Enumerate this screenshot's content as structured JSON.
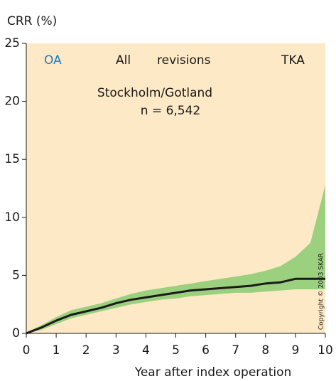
{
  "chart_data": {
    "type": "line",
    "y_label": "CRR (%)",
    "x_label": "Year after index operation",
    "annotations": {
      "left": "OA",
      "middle_1": "All",
      "middle_2": "revisions",
      "right": "TKA",
      "region": "Stockholm/Gotland",
      "count": "n = 6,542",
      "copyright": "Copyright © 2003 SKAR"
    },
    "x": [
      0,
      0.5,
      1,
      1.5,
      2,
      2.5,
      3,
      3.5,
      4,
      4.5,
      5,
      5.5,
      6,
      6.5,
      7,
      7.5,
      8,
      8.5,
      9,
      9.5,
      10
    ],
    "line": {
      "color": "#1a1a1a",
      "values": [
        0,
        0.5,
        1.1,
        1.6,
        1.9,
        2.2,
        2.6,
        2.9,
        3.1,
        3.3,
        3.5,
        3.7,
        3.8,
        3.9,
        4.0,
        4.1,
        4.3,
        4.4,
        4.7,
        4.7,
        4.7
      ]
    },
    "band": {
      "color": "#9bd07e",
      "lower": [
        0,
        0.3,
        0.8,
        1.3,
        1.6,
        1.9,
        2.2,
        2.5,
        2.7,
        2.9,
        3.0,
        3.2,
        3.3,
        3.4,
        3.5,
        3.5,
        3.6,
        3.7,
        3.8,
        3.8,
        3.8
      ],
      "upper": [
        0.1,
        0.7,
        1.4,
        2.0,
        2.3,
        2.6,
        3.0,
        3.4,
        3.7,
        3.9,
        4.1,
        4.3,
        4.5,
        4.7,
        4.9,
        5.1,
        5.4,
        5.8,
        6.6,
        7.8,
        12.8
      ]
    },
    "background_color": "#fde9c6",
    "annotation_color": "#1f7ac0",
    "xlim": [
      0,
      10
    ],
    "ylim": [
      0,
      25
    ],
    "xticks": [
      0,
      1,
      2,
      3,
      4,
      5,
      6,
      7,
      8,
      9,
      10
    ],
    "yticks": [
      0,
      5,
      10,
      15,
      20,
      25
    ]
  }
}
